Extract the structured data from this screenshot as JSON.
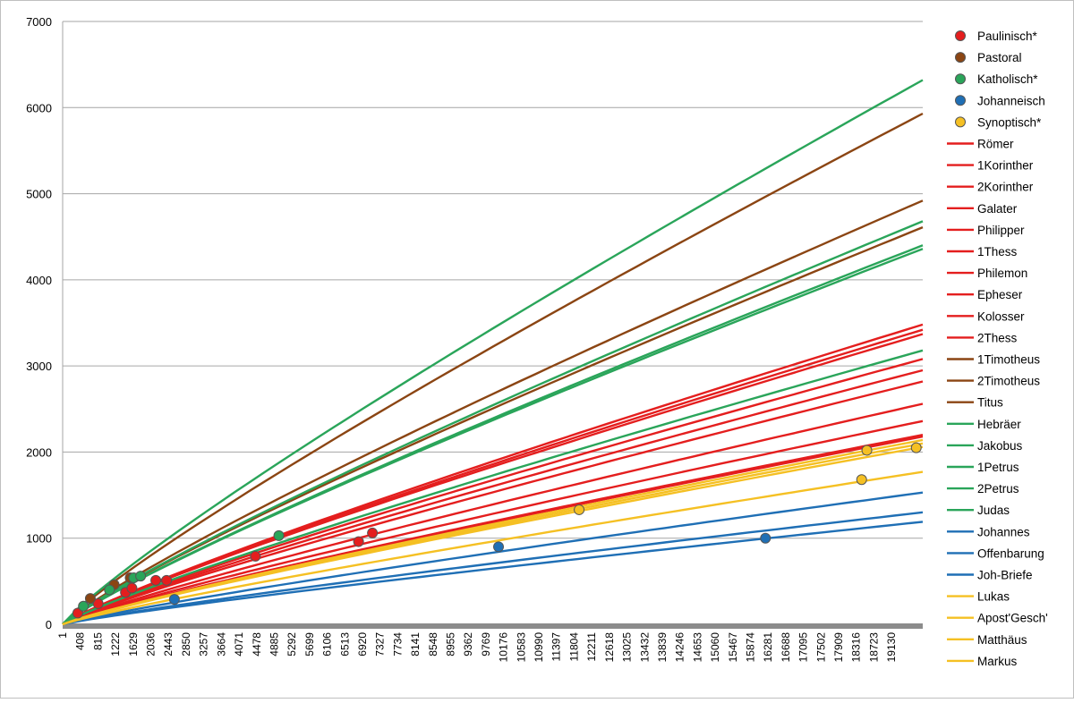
{
  "chart_data": {
    "type": "scatter",
    "title": "",
    "xlabel": "",
    "ylabel": "",
    "ylim": [
      0,
      7000
    ],
    "xlim": [
      1,
      19850
    ],
    "y_ticks": [
      "0",
      "1000",
      "2000",
      "3000",
      "4000",
      "5000",
      "6000",
      "7000"
    ],
    "x_ticks": [
      "1",
      "408",
      "815",
      "1222",
      "1629",
      "2036",
      "2443",
      "2850",
      "3257",
      "3664",
      "4071",
      "4478",
      "4885",
      "5292",
      "5699",
      "6106",
      "6513",
      "6920",
      "7327",
      "7734",
      "8141",
      "8548",
      "8955",
      "9362",
      "9769",
      "10176",
      "10583",
      "10990",
      "11397",
      "11804",
      "12211",
      "12618",
      "13025",
      "13432",
      "13839",
      "14246",
      "14653",
      "15060",
      "15467",
      "15874",
      "16281",
      "16688",
      "17095",
      "17502",
      "17909",
      "18316",
      "18723",
      "19130"
    ],
    "grid": "horizontal",
    "legend_position": "right",
    "point_series": [
      {
        "name": "Paulinisch*",
        "color": "#e41e1e",
        "points": [
          [
            350,
            130
          ],
          [
            820,
            240
          ],
          [
            1450,
            370
          ],
          [
            1600,
            420
          ],
          [
            2150,
            510
          ],
          [
            2400,
            510
          ],
          [
            4450,
            790
          ],
          [
            6830,
            960
          ],
          [
            7150,
            1060
          ]
        ]
      },
      {
        "name": "Pastoral",
        "color": "#8b4513",
        "points": [
          [
            640,
            300
          ],
          [
            1190,
            460
          ],
          [
            1560,
            540
          ]
        ]
      },
      {
        "name": "Katholisch*",
        "color": "#2aa55a",
        "points": [
          [
            480,
            210
          ],
          [
            1080,
            400
          ],
          [
            1640,
            540
          ],
          [
            1800,
            560
          ],
          [
            4990,
            1030
          ]
        ]
      },
      {
        "name": "Johanneisch",
        "color": "#1f6fb5",
        "points": [
          [
            2580,
            290
          ],
          [
            10060,
            900
          ],
          [
            16220,
            1000
          ]
        ]
      },
      {
        "name": "Synoptisch*",
        "color": "#f5c023",
        "points": [
          [
            11920,
            1330
          ],
          [
            18440,
            1680
          ],
          [
            18560,
            2020
          ],
          [
            19700,
            2050
          ]
        ]
      }
    ],
    "line_series": [
      {
        "name": "Römer",
        "color": "#e41e1e",
        "end_value": 3480
      },
      {
        "name": "1Korinther",
        "color": "#e41e1e",
        "end_value": 3420
      },
      {
        "name": "2Korinther",
        "color": "#e41e1e",
        "end_value": 3370
      },
      {
        "name": "Galater",
        "color": "#e41e1e",
        "end_value": 3080
      },
      {
        "name": "Philipper",
        "color": "#e41e1e",
        "end_value": 2950
      },
      {
        "name": "1Thess",
        "color": "#e41e1e",
        "end_value": 2820
      },
      {
        "name": "Philemon",
        "color": "#e41e1e",
        "end_value": 2560
      },
      {
        "name": "Epheser",
        "color": "#e41e1e",
        "end_value": 2360
      },
      {
        "name": "Kolosser",
        "color": "#e41e1e",
        "end_value": 2200
      },
      {
        "name": "2Thess",
        "color": "#e41e1e",
        "end_value": 2180
      },
      {
        "name": "1Timotheus",
        "color": "#8b4513",
        "end_value": 5930
      },
      {
        "name": "2Timotheus",
        "color": "#8b4513",
        "end_value": 4920
      },
      {
        "name": "Titus",
        "color": "#8b4513",
        "end_value": 4610
      },
      {
        "name": "Hebräer",
        "color": "#2aa55a",
        "end_value": 6320
      },
      {
        "name": "Jakobus",
        "color": "#2aa55a",
        "end_value": 4680
      },
      {
        "name": "1Petrus",
        "color": "#2aa55a",
        "end_value": 4400
      },
      {
        "name": "2Petrus",
        "color": "#2aa55a",
        "end_value": 4360
      },
      {
        "name": "Judas",
        "color": "#2aa55a",
        "end_value": 3180
      },
      {
        "name": "Johannes",
        "color": "#1f6fb5",
        "end_value": 1530
      },
      {
        "name": "Offenbarung",
        "color": "#1f6fb5",
        "end_value": 1300
      },
      {
        "name": "Joh-Briefe",
        "color": "#1f6fb5",
        "end_value": 1190
      },
      {
        "name": "Lukas",
        "color": "#f5c023",
        "end_value": 2140
      },
      {
        "name": "Apost'Gesch'",
        "color": "#f5c023",
        "end_value": 2100
      },
      {
        "name": "Matthäus",
        "color": "#f5c023",
        "end_value": 2060
      },
      {
        "name": "Markus",
        "color": "#f5c023",
        "end_value": 1770
      }
    ]
  }
}
